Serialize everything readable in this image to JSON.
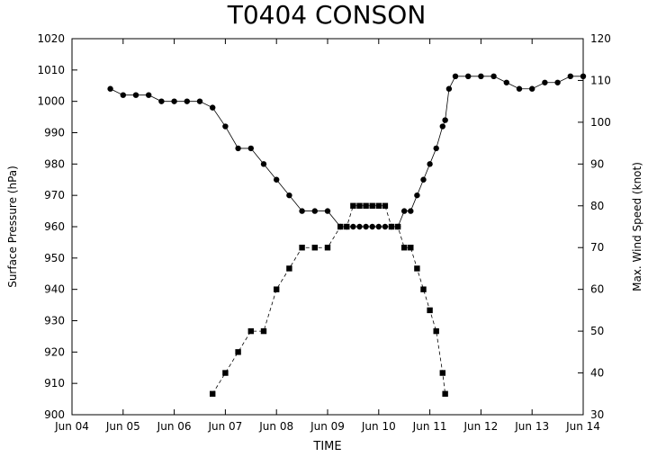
{
  "chart_data": {
    "type": "line",
    "title": "T0404 CONSON",
    "xlabel": "TIME",
    "ylabel": "Surface Pressure (hPa)",
    "y2label": "Max. Wind Speed (knot)",
    "x_ticks": [
      "Jun 04",
      "Jun 05",
      "Jun 06",
      "Jun 07",
      "Jun 08",
      "Jun 09",
      "Jun 10",
      "Jun 11",
      "Jun 12",
      "Jun 13",
      "Jun 14"
    ],
    "x_unit": "days since Jun 04 00Z",
    "xlim": [
      0,
      10
    ],
    "ylim": [
      900,
      1020
    ],
    "y_ticks": [
      900,
      910,
      920,
      930,
      940,
      950,
      960,
      970,
      980,
      990,
      1000,
      1010,
      1020
    ],
    "y2lim": [
      30,
      120
    ],
    "y2_ticks": [
      30,
      40,
      50,
      60,
      70,
      80,
      90,
      100,
      110,
      120
    ],
    "grid": false,
    "series": [
      {
        "name": "Surface Pressure",
        "axis": "left",
        "marker": "circle",
        "line": "solid",
        "x": [
          0.75,
          1.0,
          1.25,
          1.5,
          1.75,
          2.0,
          2.25,
          2.5,
          2.75,
          3.0,
          3.25,
          3.5,
          3.75,
          4.0,
          4.25,
          4.5,
          4.75,
          5.0,
          5.25,
          5.375,
          5.5,
          5.625,
          5.75,
          5.875,
          6.0,
          6.125,
          6.25,
          6.375,
          6.5,
          6.625,
          6.75,
          6.875,
          7.0,
          7.125,
          7.25,
          7.3,
          7.375,
          7.5,
          7.75,
          8.0,
          8.25,
          8.5,
          8.75,
          9.0,
          9.25,
          9.5,
          9.75,
          10.0
        ],
        "values": [
          1004,
          1002,
          1002,
          1002,
          1000,
          1000,
          1000,
          1000,
          998,
          992,
          985,
          985,
          980,
          975,
          970,
          965,
          965,
          965,
          960,
          960,
          960,
          960,
          960,
          960,
          960,
          960,
          960,
          960,
          965,
          965,
          970,
          975,
          980,
          985,
          992,
          994,
          1004,
          1008,
          1008,
          1008,
          1008,
          1006,
          1004,
          1004,
          1006,
          1006,
          1008,
          1008
        ]
      },
      {
        "name": "Max. Wind Speed",
        "axis": "right",
        "marker": "square",
        "line": "dashed",
        "x": [
          2.75,
          3.0,
          3.25,
          3.5,
          3.75,
          4.0,
          4.25,
          4.5,
          4.75,
          5.0,
          5.25,
          5.375,
          5.5,
          5.625,
          5.75,
          5.875,
          6.0,
          6.125,
          6.25,
          6.375,
          6.5,
          6.625,
          6.75,
          6.875,
          7.0,
          7.125,
          7.25,
          7.3
        ],
        "values": [
          35,
          40,
          45,
          50,
          50,
          60,
          65,
          70,
          70,
          70,
          75,
          75,
          80,
          80,
          80,
          80,
          80,
          80,
          75,
          75,
          70,
          70,
          65,
          60,
          55,
          50,
          40,
          35
        ]
      }
    ]
  }
}
